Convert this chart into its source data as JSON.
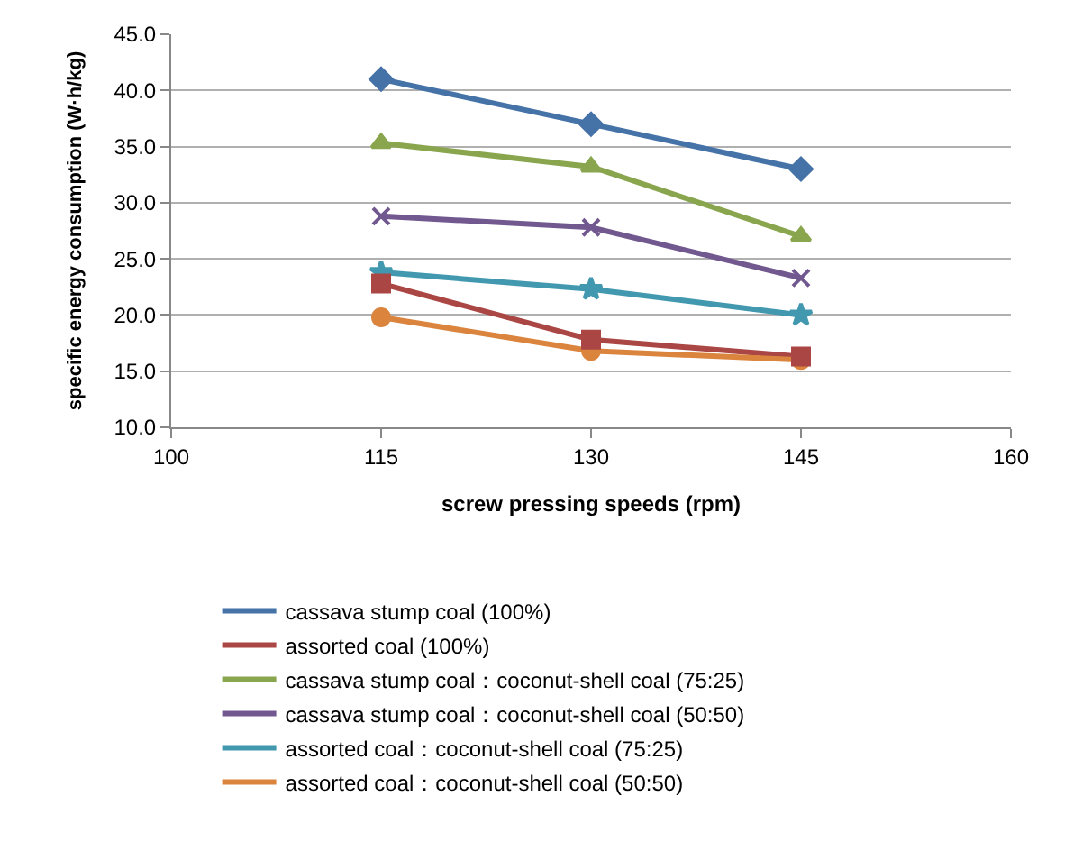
{
  "chart_data": {
    "type": "line",
    "xlabel": "screw pressing speeds (rpm)",
    "ylabel": "specific energy consumption (W·h/kg)",
    "x": [
      115,
      130,
      145
    ],
    "xlim": [
      100,
      160
    ],
    "xticks": [
      100,
      115,
      130,
      145,
      160
    ],
    "ylim": [
      10,
      45
    ],
    "yticks": [
      {
        "value": 10,
        "label": "10.0"
      },
      {
        "value": 15,
        "label": "15.0"
      },
      {
        "value": 20,
        "label": "20.0"
      },
      {
        "value": 25,
        "label": "25.0"
      },
      {
        "value": 30,
        "label": "30.0"
      },
      {
        "value": 35,
        "label": "35.0"
      },
      {
        "value": 40,
        "label": "40.0"
      },
      {
        "value": 45,
        "label": "45.0"
      }
    ],
    "grid": "y",
    "legend": "bottom",
    "line_style": "solid",
    "series": [
      {
        "name": "cassava stump coal (100%)",
        "color": "#4572a7",
        "marker": "diamond",
        "values": [
          41,
          37,
          33
        ]
      },
      {
        "name": "assorted coal (100%)",
        "color": "#aa4643",
        "marker": "square",
        "values": [
          22.8,
          17.8,
          16.3
        ]
      },
      {
        "name": "cassava stump coal：coconut-shell coal (75:25)",
        "color": "#89a54e",
        "marker": "triangle",
        "values": [
          35.3,
          33.2,
          27
        ]
      },
      {
        "name": "cassava stump coal：coconut-shell coal (50:50)",
        "color": "#71588f",
        "marker": "cross",
        "values": [
          28.8,
          27.8,
          23.3
        ]
      },
      {
        "name": "assorted coal：coconut-shell coal (75:25)",
        "color": "#4198af",
        "marker": "star",
        "values": [
          23.8,
          22.3,
          20
        ]
      },
      {
        "name": "assorted coal：coconut-shell coal (50:50)",
        "color": "#db843d",
        "marker": "circle",
        "values": [
          19.8,
          16.8,
          16
        ]
      }
    ]
  }
}
